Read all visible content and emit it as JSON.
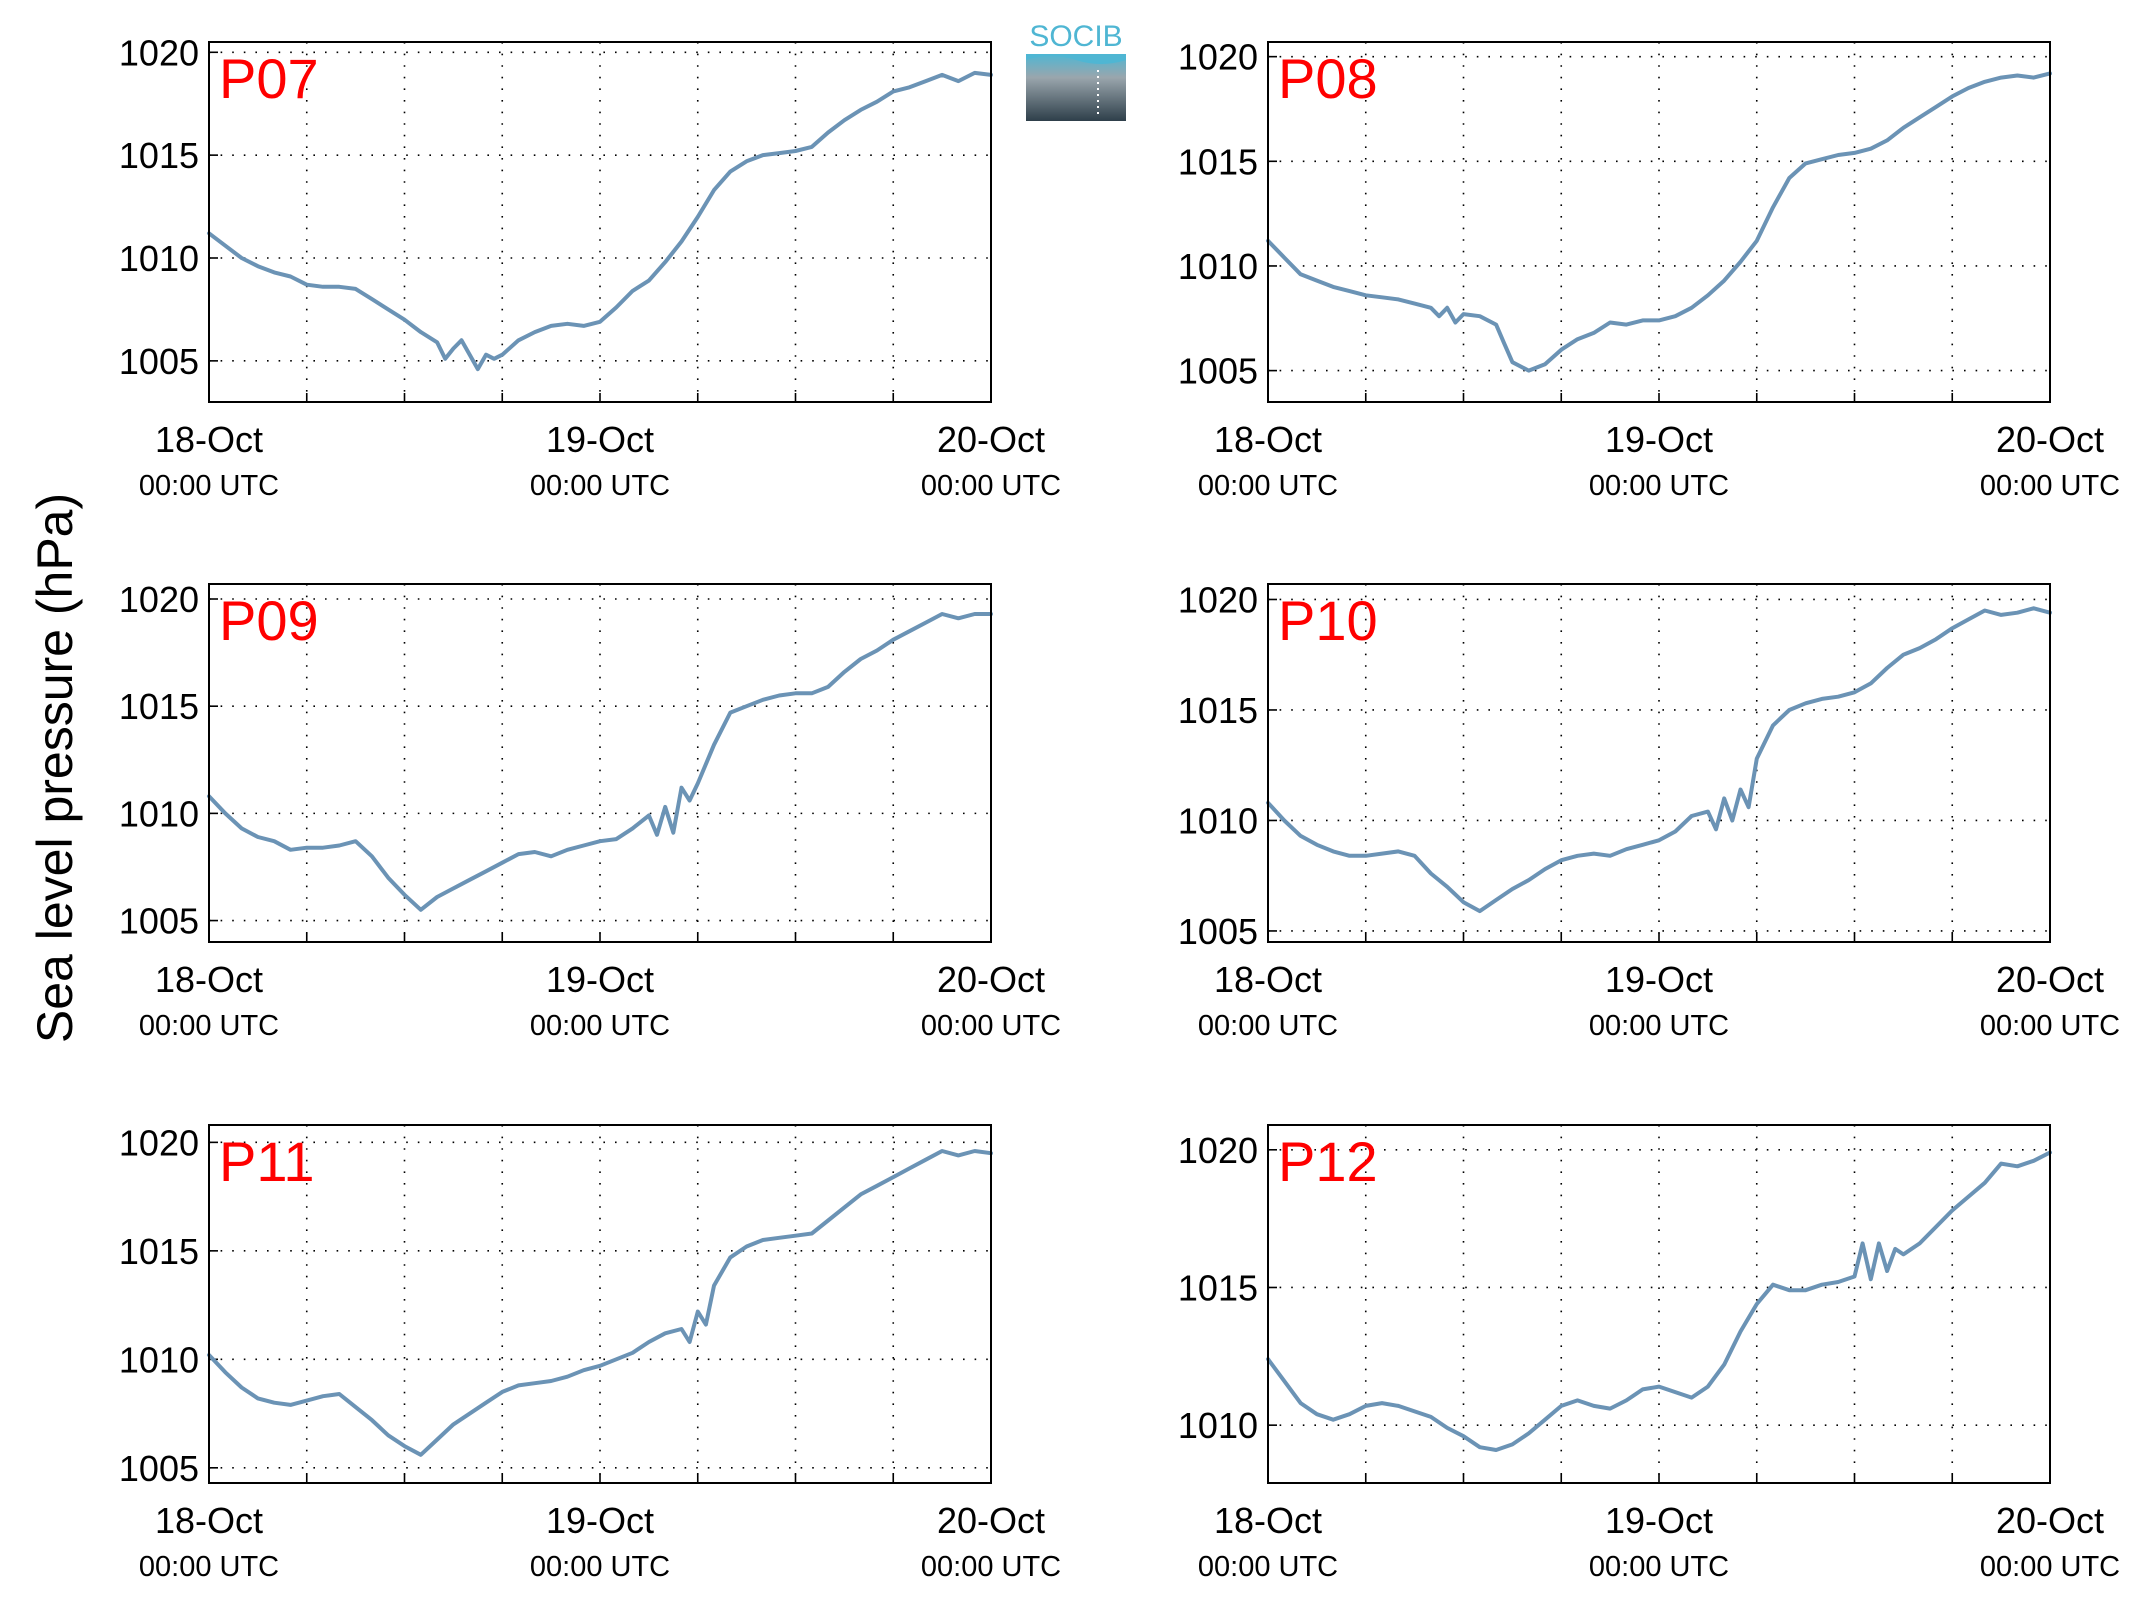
{
  "figure": {
    "ylabel": "Sea level pressure (hPa)",
    "logo_text": "SOCIB",
    "colors": {
      "line": "#6b93b5",
      "station_label": "#ff0000",
      "axis": "#000000",
      "grid": "#000000",
      "logo_top": "#4fb6d3",
      "logo_bottom": "#2e3f4a"
    }
  },
  "chart_data": [
    {
      "type": "line",
      "title": "P07",
      "x_tick_labels": [
        [
          "18-Oct",
          "00:00 UTC"
        ],
        [
          "19-Oct",
          "00:00 UTC"
        ],
        [
          "20-Oct",
          "00:00 UTC"
        ]
      ],
      "x_ticks_hours": [
        0,
        24,
        48
      ],
      "x_grid_hours": [
        0,
        6,
        12,
        18,
        24,
        30,
        36,
        42,
        48
      ],
      "xlim_hours": [
        0,
        48
      ],
      "ylim": [
        1003,
        1020.5
      ],
      "y_ticks": [
        1005,
        1010,
        1015,
        1020
      ],
      "grid": true,
      "series": [
        {
          "x_hours": [
            0,
            1,
            2,
            3,
            4,
            5,
            6,
            7,
            8,
            9,
            10,
            11,
            12,
            13,
            14,
            14.5,
            15,
            15.5,
            16,
            16.5,
            17,
            17.5,
            18,
            19,
            20,
            21,
            22,
            23,
            24,
            25,
            26,
            27,
            28,
            29,
            30,
            31,
            32,
            33,
            34,
            35,
            36,
            37,
            38,
            39,
            40,
            41,
            42,
            43,
            44,
            45,
            46,
            47,
            48
          ],
          "values": [
            1011.2,
            1010.6,
            1010.0,
            1009.6,
            1009.3,
            1009.1,
            1008.7,
            1008.6,
            1008.6,
            1008.5,
            1008.0,
            1007.5,
            1007.0,
            1006.4,
            1005.9,
            1005.1,
            1005.6,
            1006.0,
            1005.3,
            1004.6,
            1005.3,
            1005.1,
            1005.3,
            1006.0,
            1006.4,
            1006.7,
            1006.8,
            1006.7,
            1006.9,
            1007.6,
            1008.4,
            1008.9,
            1009.8,
            1010.8,
            1012.0,
            1013.3,
            1014.2,
            1014.7,
            1015.0,
            1015.1,
            1015.2,
            1015.4,
            1016.1,
            1016.7,
            1017.2,
            1017.6,
            1018.1,
            1018.3,
            1018.6,
            1018.9,
            1018.6,
            1019.0,
            1018.9
          ]
        }
      ]
    },
    {
      "type": "line",
      "title": "P08",
      "x_tick_labels": [
        [
          "18-Oct",
          "00:00 UTC"
        ],
        [
          "19-Oct",
          "00:00 UTC"
        ],
        [
          "20-Oct",
          "00:00 UTC"
        ]
      ],
      "x_ticks_hours": [
        0,
        24,
        48
      ],
      "x_grid_hours": [
        0,
        6,
        12,
        18,
        24,
        30,
        36,
        42,
        48
      ],
      "xlim_hours": [
        0,
        48
      ],
      "ylim": [
        1003.5,
        1020.7
      ],
      "y_ticks": [
        1005,
        1010,
        1015,
        1020
      ],
      "grid": true,
      "series": [
        {
          "x_hours": [
            0,
            1,
            2,
            3,
            4,
            5,
            6,
            7,
            8,
            9,
            10,
            10.5,
            11,
            11.5,
            12,
            13,
            14,
            14.5,
            15,
            16,
            17,
            18,
            19,
            20,
            21,
            22,
            23,
            24,
            25,
            26,
            27,
            28,
            29,
            30,
            31,
            32,
            33,
            34,
            35,
            36,
            37,
            38,
            39,
            40,
            41,
            42,
            43,
            44,
            45,
            46,
            47,
            48
          ],
          "values": [
            1011.2,
            1010.4,
            1009.6,
            1009.3,
            1009.0,
            1008.8,
            1008.6,
            1008.5,
            1008.4,
            1008.2,
            1008.0,
            1007.6,
            1008.0,
            1007.3,
            1007.7,
            1007.6,
            1007.2,
            1006.3,
            1005.4,
            1005.0,
            1005.3,
            1006.0,
            1006.5,
            1006.8,
            1007.3,
            1007.2,
            1007.4,
            1007.4,
            1007.6,
            1008.0,
            1008.6,
            1009.3,
            1010.2,
            1011.2,
            1012.8,
            1014.2,
            1014.9,
            1015.1,
            1015.3,
            1015.4,
            1015.6,
            1016.0,
            1016.6,
            1017.1,
            1017.6,
            1018.1,
            1018.5,
            1018.8,
            1019.0,
            1019.1,
            1019.0,
            1019.2
          ]
        }
      ]
    },
    {
      "type": "line",
      "title": "P09",
      "x_tick_labels": [
        [
          "18-Oct",
          "00:00 UTC"
        ],
        [
          "19-Oct",
          "00:00 UTC"
        ],
        [
          "20-Oct",
          "00:00 UTC"
        ]
      ],
      "x_ticks_hours": [
        0,
        24,
        48
      ],
      "x_grid_hours": [
        0,
        6,
        12,
        18,
        24,
        30,
        36,
        42,
        48
      ],
      "xlim_hours": [
        0,
        48
      ],
      "ylim": [
        1004,
        1020.7
      ],
      "y_ticks": [
        1005,
        1010,
        1015,
        1020
      ],
      "grid": true,
      "series": [
        {
          "x_hours": [
            0,
            1,
            2,
            3,
            4,
            5,
            6,
            7,
            8,
            9,
            10,
            11,
            12,
            13,
            14,
            15,
            16,
            17,
            18,
            19,
            20,
            21,
            22,
            23,
            24,
            25,
            26,
            27,
            27.5,
            28,
            28.5,
            29,
            29.5,
            30,
            31,
            32,
            33,
            34,
            35,
            36,
            37,
            38,
            39,
            40,
            41,
            42,
            43,
            44,
            45,
            46,
            47,
            48
          ],
          "values": [
            1010.8,
            1010.0,
            1009.3,
            1008.9,
            1008.7,
            1008.3,
            1008.4,
            1008.4,
            1008.5,
            1008.7,
            1008.0,
            1007.0,
            1006.2,
            1005.5,
            1006.1,
            1006.5,
            1006.9,
            1007.3,
            1007.7,
            1008.1,
            1008.2,
            1008.0,
            1008.3,
            1008.5,
            1008.7,
            1008.8,
            1009.3,
            1009.9,
            1009.0,
            1010.3,
            1009.1,
            1011.2,
            1010.6,
            1011.4,
            1013.2,
            1014.7,
            1015.0,
            1015.3,
            1015.5,
            1015.6,
            1015.6,
            1015.9,
            1016.6,
            1017.2,
            1017.6,
            1018.1,
            1018.5,
            1018.9,
            1019.3,
            1019.1,
            1019.3,
            1019.3
          ]
        }
      ]
    },
    {
      "type": "line",
      "title": "P10",
      "x_tick_labels": [
        [
          "18-Oct",
          "00:00 UTC"
        ],
        [
          "19-Oct",
          "00:00 UTC"
        ],
        [
          "20-Oct",
          "00:00 UTC"
        ]
      ],
      "x_ticks_hours": [
        0,
        24,
        48
      ],
      "x_grid_hours": [
        0,
        6,
        12,
        18,
        24,
        30,
        36,
        42,
        48
      ],
      "xlim_hours": [
        0,
        48
      ],
      "ylim": [
        1004.5,
        1020.7
      ],
      "y_ticks": [
        1005,
        1010,
        1015,
        1020
      ],
      "grid": true,
      "series": [
        {
          "x_hours": [
            0,
            1,
            2,
            3,
            4,
            5,
            6,
            7,
            8,
            9,
            10,
            11,
            12,
            13,
            14,
            15,
            16,
            17,
            18,
            19,
            20,
            21,
            22,
            23,
            24,
            25,
            26,
            27,
            27.5,
            28,
            28.5,
            29,
            29.5,
            30,
            31,
            32,
            33,
            34,
            35,
            36,
            37,
            38,
            39,
            40,
            41,
            42,
            43,
            44,
            45,
            46,
            47,
            48
          ],
          "values": [
            1010.8,
            1010.0,
            1009.3,
            1008.9,
            1008.6,
            1008.4,
            1008.4,
            1008.5,
            1008.6,
            1008.4,
            1007.6,
            1007.0,
            1006.3,
            1005.9,
            1006.4,
            1006.9,
            1007.3,
            1007.8,
            1008.2,
            1008.4,
            1008.5,
            1008.4,
            1008.7,
            1008.9,
            1009.1,
            1009.5,
            1010.2,
            1010.4,
            1009.6,
            1011.0,
            1010.0,
            1011.4,
            1010.6,
            1012.8,
            1014.3,
            1015.0,
            1015.3,
            1015.5,
            1015.6,
            1015.8,
            1016.2,
            1016.9,
            1017.5,
            1017.8,
            1018.2,
            1018.7,
            1019.1,
            1019.5,
            1019.3,
            1019.4,
            1019.6,
            1019.4
          ]
        }
      ]
    },
    {
      "type": "line",
      "title": "P11",
      "x_tick_labels": [
        [
          "18-Oct",
          "00:00 UTC"
        ],
        [
          "19-Oct",
          "00:00 UTC"
        ],
        [
          "20-Oct",
          "00:00 UTC"
        ]
      ],
      "x_ticks_hours": [
        0,
        24,
        48
      ],
      "x_grid_hours": [
        0,
        6,
        12,
        18,
        24,
        30,
        36,
        42,
        48
      ],
      "xlim_hours": [
        0,
        48
      ],
      "ylim": [
        1004.3,
        1020.8
      ],
      "y_ticks": [
        1005,
        1010,
        1015,
        1020
      ],
      "grid": true,
      "series": [
        {
          "x_hours": [
            0,
            1,
            2,
            3,
            4,
            5,
            6,
            7,
            8,
            9,
            10,
            11,
            12,
            13,
            14,
            15,
            16,
            17,
            18,
            19,
            20,
            21,
            22,
            23,
            24,
            25,
            26,
            27,
            28,
            29,
            29.5,
            30,
            30.5,
            31,
            32,
            33,
            34,
            35,
            36,
            37,
            38,
            39,
            40,
            41,
            42,
            43,
            44,
            45,
            46,
            47,
            48
          ],
          "values": [
            1010.2,
            1009.4,
            1008.7,
            1008.2,
            1008.0,
            1007.9,
            1008.1,
            1008.3,
            1008.4,
            1007.8,
            1007.2,
            1006.5,
            1006.0,
            1005.6,
            1006.3,
            1007.0,
            1007.5,
            1008.0,
            1008.5,
            1008.8,
            1008.9,
            1009.0,
            1009.2,
            1009.5,
            1009.7,
            1010.0,
            1010.3,
            1010.8,
            1011.2,
            1011.4,
            1010.8,
            1012.2,
            1011.6,
            1013.4,
            1014.7,
            1015.2,
            1015.5,
            1015.6,
            1015.7,
            1015.8,
            1016.4,
            1017.0,
            1017.6,
            1018.0,
            1018.4,
            1018.8,
            1019.2,
            1019.6,
            1019.4,
            1019.6,
            1019.5
          ]
        }
      ]
    },
    {
      "type": "line",
      "title": "P12",
      "x_tick_labels": [
        [
          "18-Oct",
          "00:00 UTC"
        ],
        [
          "19-Oct",
          "00:00 UTC"
        ],
        [
          "20-Oct",
          "00:00 UTC"
        ]
      ],
      "x_ticks_hours": [
        0,
        24,
        48
      ],
      "x_grid_hours": [
        0,
        6,
        12,
        18,
        24,
        30,
        36,
        42,
        48
      ],
      "xlim_hours": [
        0,
        48
      ],
      "ylim": [
        1007.9,
        1020.9
      ],
      "y_ticks": [
        1010,
        1015,
        1020
      ],
      "grid": true,
      "series": [
        {
          "x_hours": [
            0,
            1,
            2,
            3,
            4,
            5,
            6,
            7,
            8,
            9,
            10,
            11,
            12,
            13,
            14,
            15,
            16,
            17,
            18,
            19,
            20,
            21,
            22,
            23,
            24,
            25,
            26,
            27,
            28,
            29,
            30,
            31,
            32,
            33,
            34,
            35,
            36,
            36.5,
            37,
            37.5,
            38,
            38.5,
            39,
            40,
            41,
            42,
            43,
            44,
            45,
            46,
            47,
            48
          ],
          "values": [
            1012.4,
            1011.6,
            1010.8,
            1010.4,
            1010.2,
            1010.4,
            1010.7,
            1010.8,
            1010.7,
            1010.5,
            1010.3,
            1009.9,
            1009.6,
            1009.2,
            1009.1,
            1009.3,
            1009.7,
            1010.2,
            1010.7,
            1010.9,
            1010.7,
            1010.6,
            1010.9,
            1011.3,
            1011.4,
            1011.2,
            1011.0,
            1011.4,
            1012.2,
            1013.4,
            1014.4,
            1015.1,
            1014.9,
            1014.9,
            1015.1,
            1015.2,
            1015.4,
            1016.6,
            1015.3,
            1016.6,
            1015.6,
            1016.4,
            1016.2,
            1016.6,
            1017.2,
            1017.8,
            1018.3,
            1018.8,
            1019.5,
            1019.4,
            1019.6,
            1019.9
          ]
        }
      ]
    }
  ]
}
